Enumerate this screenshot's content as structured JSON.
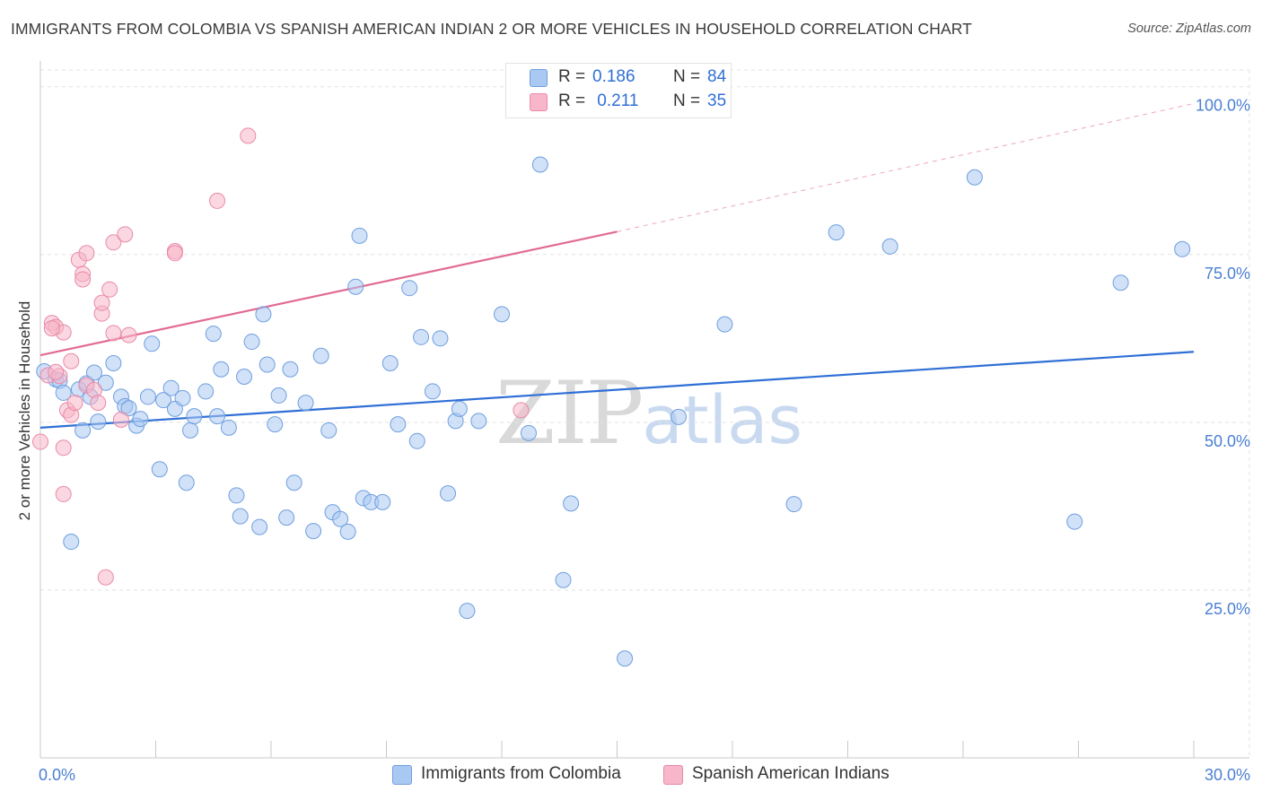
{
  "title": "IMMIGRANTS FROM COLOMBIA VS SPANISH AMERICAN INDIAN 2 OR MORE VEHICLES IN HOUSEHOLD CORRELATION CHART",
  "source": "Source: ZipAtlas.com",
  "watermark": {
    "zip": "ZIP",
    "atlas": "atlas"
  },
  "legend": {
    "rows": [
      {
        "r_label": "R =",
        "r_value": "0.186",
        "n_label": "N =",
        "n_value": "84",
        "color": "#a9c9f2"
      },
      {
        "r_label": "R =",
        "r_value": " 0.211",
        "n_label": "N =",
        "n_value": "35",
        "color": "#f7b6c9"
      }
    ]
  },
  "bottom_legend": [
    "Immigrants from Colombia",
    "Spanish American Indians"
  ],
  "chart_data": {
    "type": "scatter",
    "title": "IMMIGRANTS FROM COLOMBIA VS SPANISH AMERICAN INDIAN 2 OR MORE VEHICLES IN HOUSEHOLD CORRELATION CHART",
    "xlabel": "",
    "ylabel": "2 or more Vehicles in Household",
    "xlim": [
      0,
      30
    ],
    "ylim": [
      0,
      102.5
    ],
    "x_tick_labels": [
      "0.0%",
      "30.0%"
    ],
    "y_ticks": [
      25,
      50,
      75,
      100
    ],
    "y_tick_labels": [
      "25.0%",
      "50.0%",
      "75.0%",
      "100.0%"
    ],
    "grid": true,
    "colors": {
      "blue_fill": "#a9c9f2",
      "blue_stroke": "#6f9fde",
      "blue_line": "#2f6fd6",
      "pink_fill": "#f7b6c9",
      "pink_stroke": "#e88aa8",
      "pink_line": "#e26a93",
      "axis_text": "#4a7fd1"
    },
    "series": [
      {
        "name": "Immigrants from Colombia",
        "trend": {
          "x0": 0,
          "y0": 49.2,
          "x1": 30,
          "y1": 60.5
        },
        "points": [
          [
            0.1,
            57.6
          ],
          [
            0.4,
            56.4
          ],
          [
            0.5,
            56.2
          ],
          [
            0.6,
            54.4
          ],
          [
            0.8,
            32.2
          ],
          [
            1.0,
            54.9
          ],
          [
            1.1,
            48.8
          ],
          [
            1.2,
            55.8
          ],
          [
            1.3,
            53.8
          ],
          [
            1.4,
            57.4
          ],
          [
            1.5,
            50.1
          ],
          [
            1.7,
            55.9
          ],
          [
            1.9,
            58.8
          ],
          [
            2.1,
            53.8
          ],
          [
            2.2,
            52.4
          ],
          [
            2.3,
            52.1
          ],
          [
            2.5,
            49.5
          ],
          [
            2.6,
            50.5
          ],
          [
            2.8,
            53.8
          ],
          [
            2.9,
            61.7
          ],
          [
            3.1,
            43.0
          ],
          [
            3.2,
            53.3
          ],
          [
            3.4,
            55.1
          ],
          [
            3.5,
            52.0
          ],
          [
            3.7,
            53.6
          ],
          [
            3.8,
            41.0
          ],
          [
            3.9,
            48.8
          ],
          [
            4.0,
            50.9
          ],
          [
            4.3,
            54.6
          ],
          [
            4.5,
            63.2
          ],
          [
            4.6,
            50.9
          ],
          [
            4.7,
            57.9
          ],
          [
            4.9,
            49.2
          ],
          [
            5.1,
            39.1
          ],
          [
            5.2,
            36.0
          ],
          [
            5.3,
            56.8
          ],
          [
            5.5,
            62.0
          ],
          [
            5.7,
            34.4
          ],
          [
            5.8,
            66.1
          ],
          [
            5.9,
            58.6
          ],
          [
            6.1,
            49.7
          ],
          [
            6.2,
            54.0
          ],
          [
            6.4,
            35.8
          ],
          [
            6.5,
            57.9
          ],
          [
            6.6,
            41.0
          ],
          [
            6.9,
            52.9
          ],
          [
            7.1,
            33.8
          ],
          [
            7.3,
            59.9
          ],
          [
            7.5,
            48.8
          ],
          [
            7.6,
            36.6
          ],
          [
            7.8,
            35.6
          ],
          [
            8.0,
            33.7
          ],
          [
            8.2,
            70.2
          ],
          [
            8.3,
            77.8
          ],
          [
            8.4,
            38.7
          ],
          [
            8.6,
            38.1
          ],
          [
            8.9,
            38.1
          ],
          [
            9.1,
            58.8
          ],
          [
            9.3,
            49.7
          ],
          [
            9.6,
            70.0
          ],
          [
            9.8,
            47.2
          ],
          [
            9.9,
            62.7
          ],
          [
            10.2,
            54.6
          ],
          [
            10.4,
            62.5
          ],
          [
            10.6,
            39.4
          ],
          [
            10.8,
            50.2
          ],
          [
            10.9,
            52.0
          ],
          [
            11.1,
            21.9
          ],
          [
            11.4,
            50.2
          ],
          [
            12.0,
            66.1
          ],
          [
            12.7,
            48.4
          ],
          [
            13.0,
            88.4
          ],
          [
            13.6,
            26.5
          ],
          [
            13.8,
            37.9
          ],
          [
            15.2,
            14.8
          ],
          [
            16.6,
            50.8
          ],
          [
            17.8,
            64.6
          ],
          [
            19.6,
            37.8
          ],
          [
            20.7,
            78.3
          ],
          [
            22.1,
            76.2
          ],
          [
            24.3,
            86.5
          ],
          [
            26.9,
            35.2
          ],
          [
            28.1,
            70.8
          ],
          [
            29.7,
            75.8
          ]
        ]
      },
      {
        "name": "Spanish American Indians",
        "trend": {
          "x0": 0,
          "y0": 60.0,
          "x1": 15.0,
          "y1": 78.4,
          "dash_x1": 30,
          "dash_y1": 97.5
        },
        "points": [
          [
            0.0,
            47.1
          ],
          [
            0.2,
            57.0
          ],
          [
            0.3,
            64.8
          ],
          [
            0.4,
            64.2
          ],
          [
            0.5,
            56.9
          ],
          [
            0.6,
            46.2
          ],
          [
            0.6,
            39.3
          ],
          [
            0.6,
            63.4
          ],
          [
            0.7,
            51.8
          ],
          [
            0.8,
            59.1
          ],
          [
            0.8,
            51.1
          ],
          [
            0.9,
            52.9
          ],
          [
            1.0,
            74.2
          ],
          [
            1.1,
            72.1
          ],
          [
            1.1,
            71.3
          ],
          [
            1.2,
            75.2
          ],
          [
            1.2,
            55.5
          ],
          [
            1.4,
            54.8
          ],
          [
            1.5,
            52.9
          ],
          [
            1.6,
            66.2
          ],
          [
            1.6,
            67.8
          ],
          [
            1.7,
            26.9
          ],
          [
            1.8,
            69.8
          ],
          [
            1.9,
            76.8
          ],
          [
            1.9,
            63.3
          ],
          [
            2.1,
            50.4
          ],
          [
            2.2,
            78.0
          ],
          [
            2.3,
            63.0
          ],
          [
            3.5,
            75.5
          ],
          [
            3.5,
            75.2
          ],
          [
            4.6,
            83.0
          ],
          [
            5.4,
            92.7
          ],
          [
            12.5,
            51.8
          ],
          [
            0.4,
            57.5
          ],
          [
            0.3,
            64.0
          ]
        ]
      }
    ]
  }
}
